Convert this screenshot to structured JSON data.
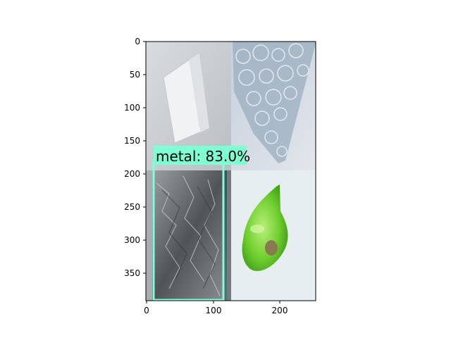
{
  "plot": {
    "x_ticks": [
      "0",
      "100",
      "200"
    ],
    "y_ticks": [
      "0",
      "50",
      "100",
      "150",
      "200",
      "250",
      "300",
      "350"
    ],
    "x_range": [
      0,
      256
    ],
    "y_range": [
      0,
      392
    ]
  },
  "image_tiles": [
    {
      "name": "plastic-bag-tile",
      "description": "white plastic bag on gray background"
    },
    {
      "name": "bubble-glass-tile",
      "description": "clear bubble-textured glass piece"
    },
    {
      "name": "foil-tile",
      "description": "crumpled aluminium foil"
    },
    {
      "name": "green-glass-tile",
      "description": "green glass shard with pebble"
    }
  ],
  "detection": {
    "label": "metal: 83.0%",
    "color": "#7fffd4"
  }
}
